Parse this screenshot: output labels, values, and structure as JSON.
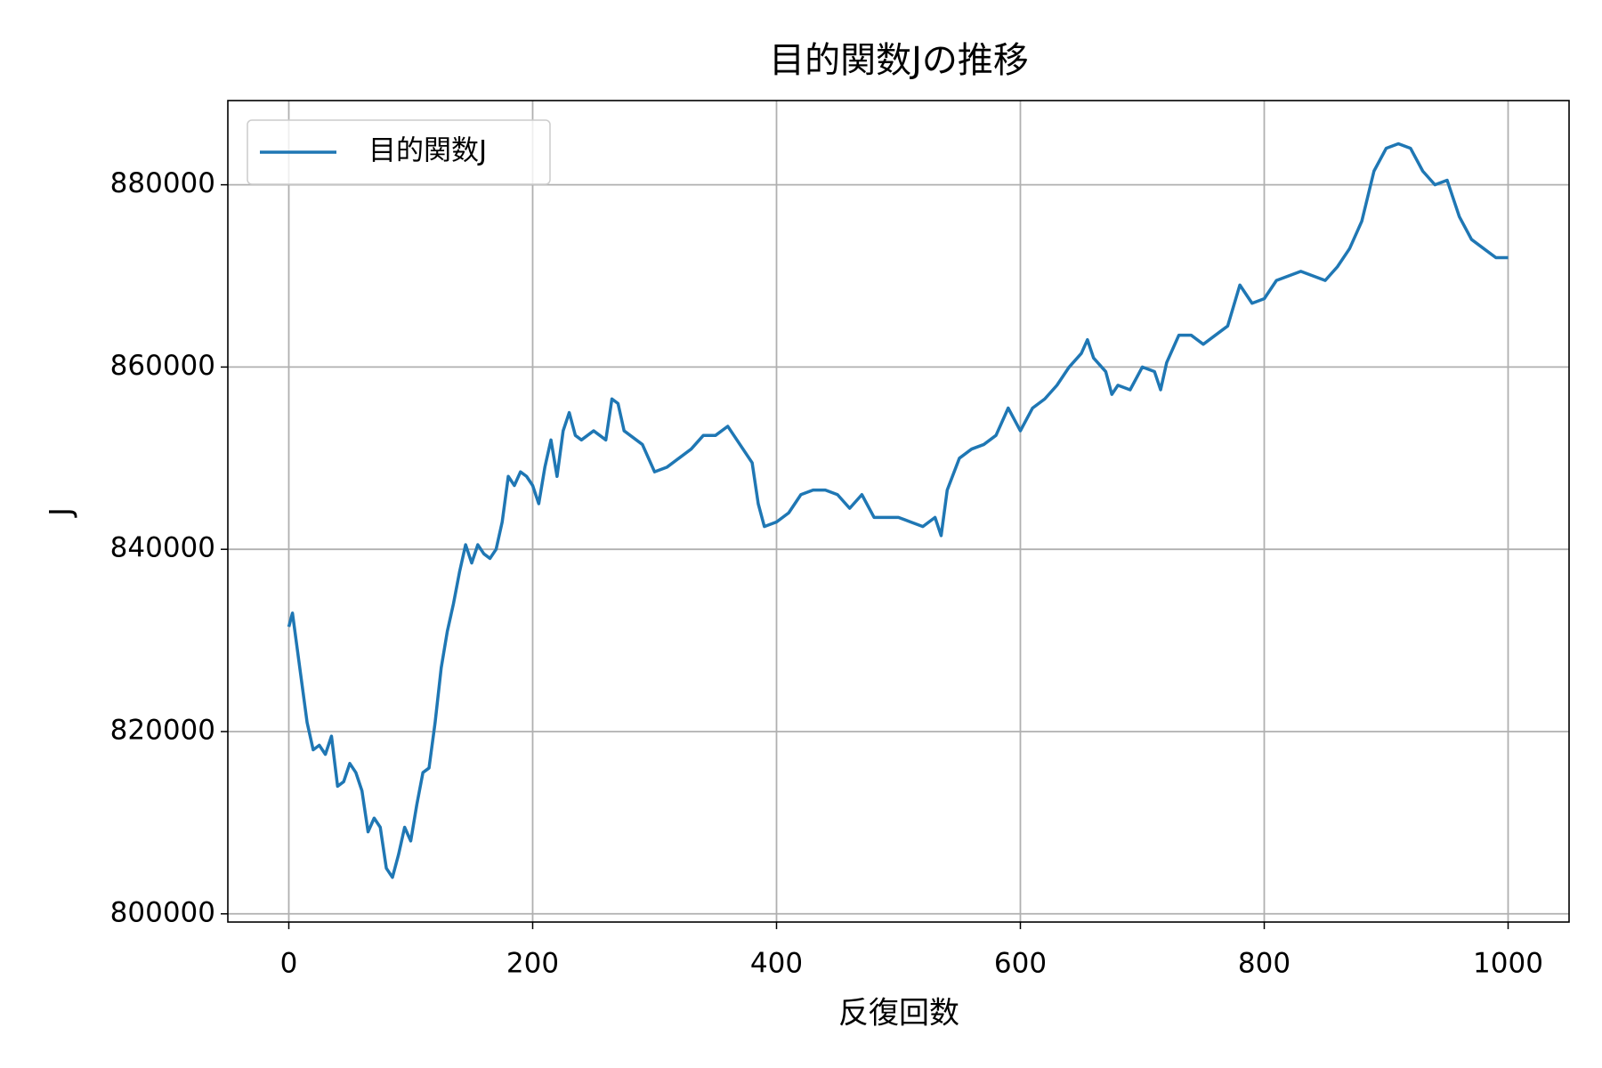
{
  "chart_data": {
    "type": "line",
    "title": "目的関数Jの推移",
    "x_label": "反復回数",
    "y_label": "J",
    "x": [
      0,
      3,
      10,
      12,
      15,
      20,
      25,
      30,
      35,
      40,
      45,
      50,
      55,
      60,
      65,
      70,
      75,
      80,
      85,
      90,
      95,
      100,
      105,
      110,
      115,
      120,
      125,
      130,
      135,
      140,
      145,
      150,
      155,
      160,
      165,
      170,
      175,
      180,
      185,
      190,
      195,
      200,
      205,
      210,
      215,
      220,
      225,
      230,
      235,
      240,
      250,
      260,
      265,
      270,
      275,
      280,
      290,
      300,
      310,
      320,
      330,
      340,
      350,
      360,
      370,
      380,
      385,
      390,
      400,
      410,
      420,
      430,
      440,
      450,
      460,
      470,
      480,
      490,
      500,
      510,
      520,
      530,
      535,
      540,
      550,
      560,
      570,
      580,
      590,
      600,
      610,
      620,
      630,
      640,
      650,
      655,
      660,
      670,
      675,
      680,
      690,
      700,
      710,
      715,
      720,
      730,
      740,
      750,
      760,
      770,
      780,
      790,
      800,
      810,
      820,
      830,
      840,
      850,
      860,
      870,
      880,
      890,
      900,
      910,
      920,
      930,
      940,
      950,
      960,
      970,
      980,
      990,
      1000
    ],
    "series": [
      {
        "name": "目的関数J",
        "color": "#1f77b4",
        "values": [
          831500,
          833000,
          826000,
          824000,
          821000,
          818000,
          818500,
          817500,
          819500,
          814000,
          814500,
          816500,
          815500,
          813500,
          809000,
          810500,
          809500,
          805000,
          804000,
          806500,
          809500,
          808000,
          812000,
          815500,
          816000,
          821000,
          827000,
          831000,
          834000,
          837500,
          840500,
          838500,
          840500,
          839500,
          839000,
          840000,
          843000,
          848000,
          847000,
          848500,
          848000,
          847000,
          845000,
          849000,
          852000,
          848000,
          853000,
          855000,
          852500,
          852000,
          853000,
          852000,
          856500,
          856000,
          853000,
          852500,
          851500,
          848500,
          849000,
          850000,
          851000,
          852500,
          852500,
          853500,
          851500,
          849500,
          845000,
          842500,
          843000,
          844000,
          846000,
          846500,
          846500,
          846000,
          844500,
          846000,
          843500,
          843500,
          843500,
          843000,
          842500,
          843500,
          841500,
          846500,
          850000,
          851000,
          851500,
          852500,
          855500,
          853000,
          855500,
          856500,
          858000,
          860000,
          861500,
          863000,
          861000,
          859500,
          857000,
          858000,
          857500,
          860000,
          859500,
          857500,
          860500,
          863500,
          863500,
          862500,
          863500,
          864500,
          869000,
          867000,
          867500,
          869500,
          870000,
          870500,
          870000,
          869500,
          871000,
          873000,
          876000,
          881500,
          884000,
          884500,
          884000,
          881500,
          880000,
          880500,
          876500,
          874000,
          873000,
          872000,
          872000
        ]
      }
    ],
    "xlim": [
      -50,
      1050
    ],
    "ylim": [
      799100,
      889240
    ],
    "xticks": [
      0,
      200,
      400,
      600,
      800,
      1000
    ],
    "yticks": [
      800000,
      820000,
      840000,
      860000,
      880000
    ],
    "grid": true,
    "legend": "upper left"
  }
}
